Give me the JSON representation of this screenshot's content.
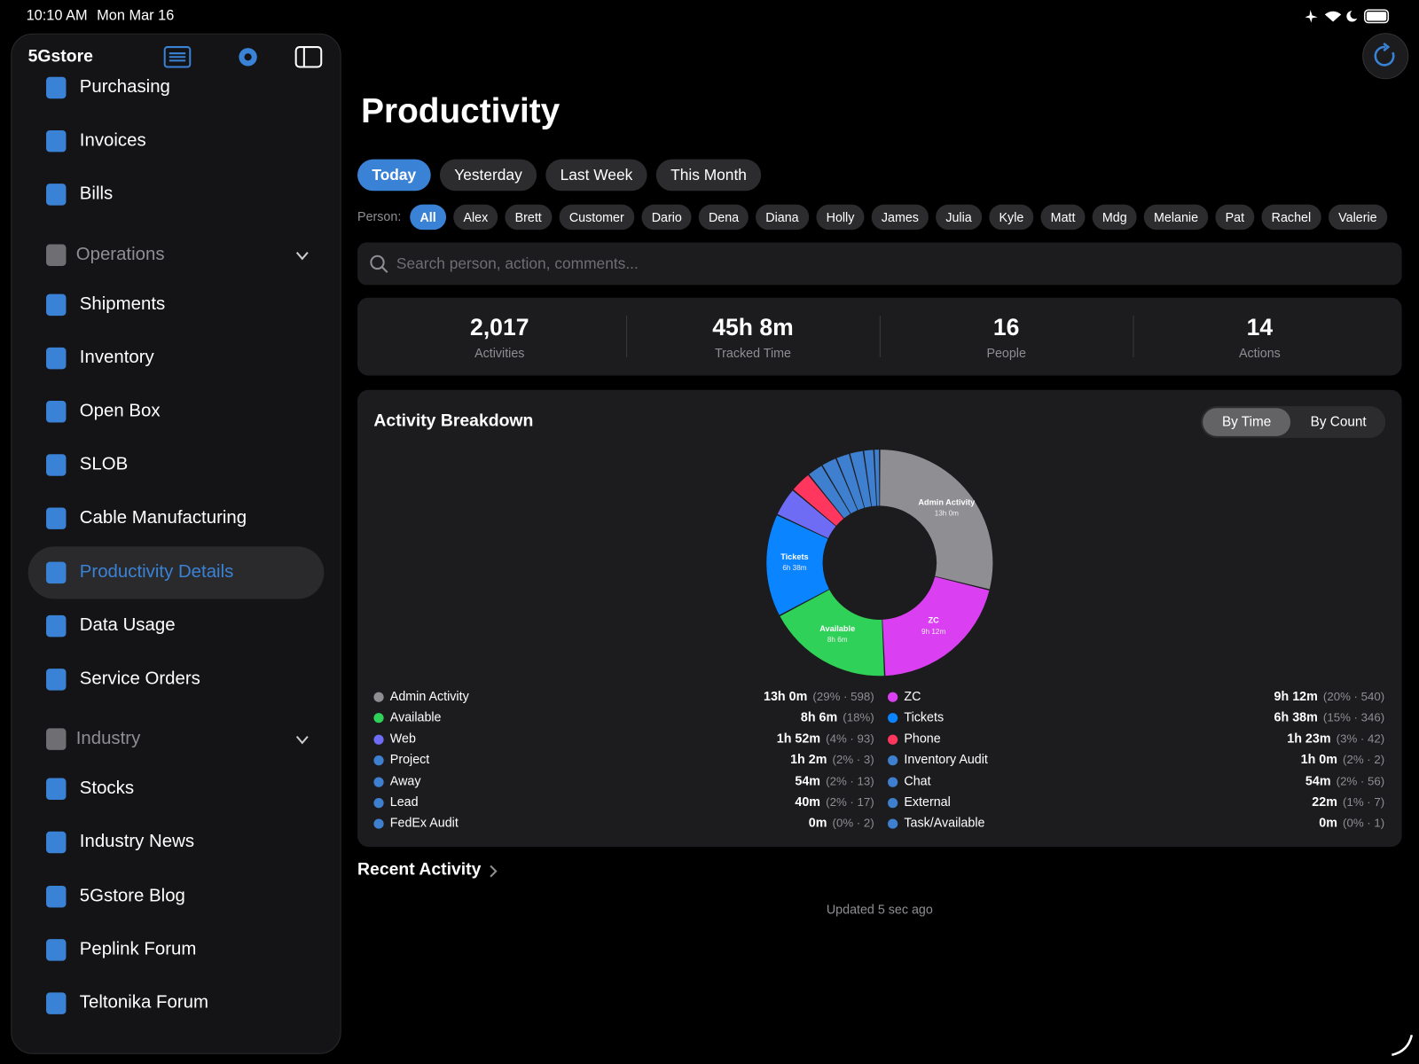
{
  "status_bar": {
    "time": "10:10 AM",
    "date": "Mon Mar 16"
  },
  "sidebar": {
    "title": "5Gstore",
    "top_items": [
      "Purchasing",
      "Invoices",
      "Bills"
    ],
    "sections": [
      {
        "title": "Operations",
        "items": [
          "Shipments",
          "Inventory",
          "Open Box",
          "SLOB",
          "Cable Manufacturing",
          "Productivity Details",
          "Data Usage",
          "Service Orders"
        ]
      },
      {
        "title": "Industry",
        "items": [
          "Stocks",
          "Industry News",
          "5Gstore Blog",
          "Peplink Forum",
          "Teltonika Forum"
        ]
      }
    ]
  },
  "header": {
    "title": "Productivity",
    "ranges": [
      "Today",
      "Yesterday",
      "Last Week",
      "This Month"
    ],
    "person_label": "Person:",
    "people": [
      "All",
      "Alex",
      "Brett",
      "Customer",
      "Dario",
      "Dena",
      "Diana",
      "Holly",
      "James",
      "Julia",
      "Kyle",
      "Matt",
      "Mdg",
      "Melanie",
      "Pat",
      "Rachel",
      "Valerie"
    ],
    "search_placeholder": "Search person, action, comments..."
  },
  "stats": [
    {
      "value": "2,017",
      "label": "Activities"
    },
    {
      "value": "45h 8m",
      "label": "Tracked Time"
    },
    {
      "value": "16",
      "label": "People"
    },
    {
      "value": "14",
      "label": "Actions"
    }
  ],
  "chart_data": {
    "type": "donut",
    "title": "Activity Breakdown",
    "toggle": [
      "By Time",
      "By Count"
    ],
    "categories": [
      "Admin Activity",
      "ZC",
      "Available",
      "Tickets",
      "Web",
      "Phone",
      "Project",
      "Inventory Audit",
      "Away",
      "Chat",
      "Lead",
      "External",
      "FedEx Audit",
      "Task/Available"
    ],
    "values": [
      780,
      552,
      486,
      398,
      112,
      83,
      62,
      60,
      54,
      54,
      40,
      22,
      0,
      0
    ],
    "value_labels": [
      "13h 0m",
      "9h 12m",
      "8h 6m",
      "6h 38m",
      "1h 52m",
      "1h 23m",
      "1h 2m",
      "1h 0m",
      "54m",
      "54m",
      "40m",
      "22m",
      "0m",
      "0m"
    ],
    "details": [
      "(29% · 598)",
      "(20% · 540)",
      "(18%)",
      "(15% · 346)",
      "(4% · 93)",
      "(3% · 42)",
      "(2% · 3)",
      "(2% · 2)",
      "(2% · 13)",
      "(2% · 56)",
      "(2% · 17)",
      "(1% · 7)",
      "(0% · 2)",
      "(0% · 1)"
    ],
    "colors": [
      "#8e8e93",
      "#da3ff2",
      "#30d158",
      "#0a84ff",
      "#6e6cf5",
      "#ff375f",
      "#3f7fd0",
      "#3f7fd0",
      "#3f7fd0",
      "#3f7fd0",
      "#3f7fd0",
      "#3f7fd0",
      "#3f7fd0",
      "#3f7fd0"
    ]
  },
  "recent": {
    "title": "Recent Activity",
    "updated": "Updated 5 sec ago"
  }
}
